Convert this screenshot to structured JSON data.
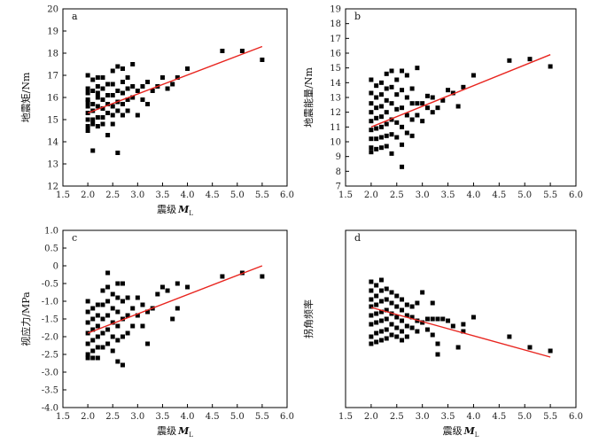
{
  "chart_data": [
    {
      "type": "scatter",
      "panel": "a",
      "xlabel": "震级",
      "xlabel_symbol": "M",
      "xlabel_sub": "L",
      "ylabel": "地震矩/Nm",
      "xlim": [
        1.5,
        6.0
      ],
      "ylim": [
        12,
        20
      ],
      "xticks": [
        "1.5",
        "2.0",
        "2.5",
        "3.0",
        "3.5",
        "4.0",
        "4.5",
        "5.0",
        "5.5",
        "6.0"
      ],
      "yticks": [
        "12",
        "13",
        "14",
        "15",
        "16",
        "17",
        "18",
        "19",
        "20"
      ],
      "fit_line": {
        "x": [
          2.0,
          5.5
        ],
        "y": [
          15.3,
          18.3
        ],
        "color": "#e8251f"
      },
      "points": [
        [
          2.0,
          17.0
        ],
        [
          2.0,
          16.4
        ],
        [
          2.0,
          15.9
        ],
        [
          2.0,
          15.6
        ],
        [
          2.0,
          15.3
        ],
        [
          2.0,
          15.0
        ],
        [
          2.0,
          14.7
        ],
        [
          2.0,
          14.5
        ],
        [
          2.0,
          16.2
        ],
        [
          2.0,
          15.8
        ],
        [
          2.1,
          16.8
        ],
        [
          2.1,
          16.3
        ],
        [
          2.1,
          15.7
        ],
        [
          2.1,
          15.4
        ],
        [
          2.1,
          15.0
        ],
        [
          2.1,
          14.8
        ],
        [
          2.1,
          13.6
        ],
        [
          2.2,
          16.9
        ],
        [
          2.2,
          16.5
        ],
        [
          2.2,
          16.0
        ],
        [
          2.2,
          15.6
        ],
        [
          2.2,
          15.1
        ],
        [
          2.2,
          14.7
        ],
        [
          2.2,
          16.2
        ],
        [
          2.3,
          16.9
        ],
        [
          2.3,
          16.4
        ],
        [
          2.3,
          15.9
        ],
        [
          2.3,
          15.5
        ],
        [
          2.3,
          15.1
        ],
        [
          2.3,
          14.8
        ],
        [
          2.4,
          14.3
        ],
        [
          2.4,
          16.6
        ],
        [
          2.4,
          16.1
        ],
        [
          2.4,
          15.7
        ],
        [
          2.4,
          15.3
        ],
        [
          2.5,
          17.2
        ],
        [
          2.5,
          16.6
        ],
        [
          2.5,
          16.1
        ],
        [
          2.5,
          15.6
        ],
        [
          2.5,
          15.2
        ],
        [
          2.5,
          14.8
        ],
        [
          2.6,
          17.4
        ],
        [
          2.6,
          16.3
        ],
        [
          2.6,
          15.8
        ],
        [
          2.6,
          15.4
        ],
        [
          2.6,
          13.5
        ],
        [
          2.7,
          17.3
        ],
        [
          2.7,
          16.7
        ],
        [
          2.7,
          16.2
        ],
        [
          2.7,
          15.7
        ],
        [
          2.7,
          15.2
        ],
        [
          2.8,
          16.9
        ],
        [
          2.8,
          16.4
        ],
        [
          2.8,
          15.9
        ],
        [
          2.8,
          15.4
        ],
        [
          2.9,
          17.5
        ],
        [
          2.9,
          16.5
        ],
        [
          2.9,
          16.0
        ],
        [
          3.0,
          15.2
        ],
        [
          3.0,
          16.3
        ],
        [
          3.1,
          16.5
        ],
        [
          3.1,
          15.9
        ],
        [
          3.2,
          16.7
        ],
        [
          3.2,
          15.7
        ],
        [
          3.3,
          16.3
        ],
        [
          3.4,
          16.5
        ],
        [
          3.5,
          16.9
        ],
        [
          3.6,
          16.4
        ],
        [
          3.7,
          16.6
        ],
        [
          3.8,
          16.9
        ],
        [
          4.0,
          17.3
        ],
        [
          4.7,
          18.1
        ],
        [
          5.1,
          18.1
        ],
        [
          5.5,
          17.7
        ]
      ]
    },
    {
      "type": "scatter",
      "panel": "b",
      "xlabel": "",
      "ylabel": "地震能量/Nm",
      "xlim": [
        1.5,
        6.0
      ],
      "ylim": [
        7,
        19
      ],
      "xticks": [
        "1.5",
        "2.0",
        "2.5",
        "3.0",
        "3.5",
        "4.0",
        "4.5",
        "5.0",
        "5.5",
        "6.0"
      ],
      "yticks": [
        "7",
        "8",
        "9",
        "10",
        "11",
        "12",
        "13",
        "14",
        "15",
        "16",
        "17",
        "18",
        "19"
      ],
      "fit_line": {
        "x": [
          2.0,
          5.5
        ],
        "y": [
          11.0,
          15.9
        ],
        "color": "#e8251f"
      },
      "points": [
        [
          2.0,
          14.2
        ],
        [
          2.0,
          13.3
        ],
        [
          2.0,
          12.6
        ],
        [
          2.0,
          12.0
        ],
        [
          2.0,
          11.4
        ],
        [
          2.0,
          10.8
        ],
        [
          2.0,
          10.2
        ],
        [
          2.0,
          9.6
        ],
        [
          2.0,
          9.3
        ],
        [
          2.1,
          13.8
        ],
        [
          2.1,
          13.0
        ],
        [
          2.1,
          12.3
        ],
        [
          2.1,
          11.6
        ],
        [
          2.1,
          10.9
        ],
        [
          2.1,
          10.2
        ],
        [
          2.1,
          9.5
        ],
        [
          2.2,
          14.0
        ],
        [
          2.2,
          13.2
        ],
        [
          2.2,
          12.4
        ],
        [
          2.2,
          11.7
        ],
        [
          2.2,
          11.0
        ],
        [
          2.2,
          10.3
        ],
        [
          2.2,
          9.6
        ],
        [
          2.3,
          14.6
        ],
        [
          2.3,
          13.6
        ],
        [
          2.3,
          12.8
        ],
        [
          2.3,
          12.0
        ],
        [
          2.3,
          11.2
        ],
        [
          2.3,
          10.4
        ],
        [
          2.3,
          9.7
        ],
        [
          2.4,
          14.8
        ],
        [
          2.4,
          13.7
        ],
        [
          2.4,
          12.6
        ],
        [
          2.4,
          11.5
        ],
        [
          2.4,
          10.5
        ],
        [
          2.4,
          9.2
        ],
        [
          2.5,
          14.2
        ],
        [
          2.5,
          13.2
        ],
        [
          2.5,
          12.2
        ],
        [
          2.5,
          11.3
        ],
        [
          2.5,
          10.3
        ],
        [
          2.6,
          14.8
        ],
        [
          2.6,
          13.5
        ],
        [
          2.6,
          12.3
        ],
        [
          2.6,
          11.0
        ],
        [
          2.6,
          8.3
        ],
        [
          2.6,
          9.8
        ],
        [
          2.7,
          14.5
        ],
        [
          2.7,
          13.0
        ],
        [
          2.7,
          11.8
        ],
        [
          2.7,
          10.6
        ],
        [
          2.8,
          13.6
        ],
        [
          2.8,
          12.6
        ],
        [
          2.8,
          11.5
        ],
        [
          2.8,
          10.4
        ],
        [
          2.9,
          15.0
        ],
        [
          2.9,
          12.6
        ],
        [
          2.9,
          11.8
        ],
        [
          3.0,
          11.4
        ],
        [
          3.0,
          12.6
        ],
        [
          3.1,
          13.1
        ],
        [
          3.1,
          12.3
        ],
        [
          3.2,
          13.0
        ],
        [
          3.2,
          12.0
        ],
        [
          3.3,
          12.3
        ],
        [
          3.4,
          12.8
        ],
        [
          3.5,
          13.5
        ],
        [
          3.6,
          13.3
        ],
        [
          3.7,
          12.4
        ],
        [
          3.8,
          13.7
        ],
        [
          4.0,
          14.5
        ],
        [
          4.7,
          15.5
        ],
        [
          5.1,
          15.6
        ],
        [
          5.5,
          15.1
        ]
      ]
    },
    {
      "type": "scatter",
      "panel": "c",
      "xlabel": "震级",
      "xlabel_symbol": "M",
      "xlabel_sub": "L",
      "ylabel": "视应力/MPa",
      "xlim": [
        1.5,
        6.0
      ],
      "ylim": [
        -4.0,
        1.0
      ],
      "xticks": [
        "1.5",
        "2.0",
        "2.5",
        "3.0",
        "3.5",
        "4.0",
        "4.5",
        "5.0",
        "5.5",
        "6.0"
      ],
      "yticks": [
        "-4.0",
        "-3.5",
        "-3.0",
        "-2.5",
        "-2.0",
        "-1.5",
        "-1.0",
        "-0.5",
        "0",
        "0.5",
        "1.0"
      ],
      "fit_line": {
        "x": [
          2.0,
          5.5
        ],
        "y": [
          -1.9,
          0.0
        ],
        "color": "#e8251f"
      },
      "points": [
        [
          2.0,
          -1.0
        ],
        [
          2.0,
          -1.3
        ],
        [
          2.0,
          -1.6
        ],
        [
          2.0,
          -1.9
        ],
        [
          2.0,
          -2.2
        ],
        [
          2.0,
          -2.5
        ],
        [
          2.0,
          -2.6
        ],
        [
          2.1,
          -1.2
        ],
        [
          2.1,
          -1.5
        ],
        [
          2.1,
          -1.8
        ],
        [
          2.1,
          -2.1
        ],
        [
          2.1,
          -2.4
        ],
        [
          2.1,
          -2.6
        ],
        [
          2.2,
          -1.1
        ],
        [
          2.2,
          -1.4
        ],
        [
          2.2,
          -1.7
        ],
        [
          2.2,
          -2.0
        ],
        [
          2.2,
          -2.3
        ],
        [
          2.2,
          -2.6
        ],
        [
          2.3,
          -0.7
        ],
        [
          2.3,
          -1.1
        ],
        [
          2.3,
          -1.5
        ],
        [
          2.3,
          -1.9
        ],
        [
          2.3,
          -2.3
        ],
        [
          2.4,
          -0.2
        ],
        [
          2.4,
          -0.6
        ],
        [
          2.4,
          -1.0
        ],
        [
          2.4,
          -1.4
        ],
        [
          2.4,
          -1.8
        ],
        [
          2.4,
          -2.2
        ],
        [
          2.5,
          -0.8
        ],
        [
          2.5,
          -1.2
        ],
        [
          2.5,
          -1.6
        ],
        [
          2.5,
          -2.0
        ],
        [
          2.5,
          -2.4
        ],
        [
          2.6,
          -0.5
        ],
        [
          2.6,
          -0.9
        ],
        [
          2.6,
          -1.3
        ],
        [
          2.6,
          -1.7
        ],
        [
          2.6,
          -2.1
        ],
        [
          2.6,
          -2.7
        ],
        [
          2.7,
          -0.5
        ],
        [
          2.7,
          -1.0
        ],
        [
          2.7,
          -1.5
        ],
        [
          2.7,
          -2.0
        ],
        [
          2.7,
          -2.8
        ],
        [
          2.8,
          -0.9
        ],
        [
          2.8,
          -1.4
        ],
        [
          2.8,
          -1.9
        ],
        [
          2.9,
          -1.2
        ],
        [
          2.9,
          -1.7
        ],
        [
          3.0,
          -0.9
        ],
        [
          3.0,
          -1.4
        ],
        [
          3.1,
          -1.1
        ],
        [
          3.1,
          -1.7
        ],
        [
          3.2,
          -1.3
        ],
        [
          3.2,
          -2.2
        ],
        [
          3.3,
          -1.2
        ],
        [
          3.4,
          -0.8
        ],
        [
          3.5,
          -0.6
        ],
        [
          3.6,
          -0.7
        ],
        [
          3.7,
          -1.5
        ],
        [
          3.8,
          -1.2
        ],
        [
          3.8,
          -0.5
        ],
        [
          4.0,
          -0.6
        ],
        [
          4.7,
          -0.3
        ],
        [
          5.1,
          -0.2
        ],
        [
          5.5,
          -0.3
        ]
      ]
    },
    {
      "type": "scatter",
      "panel": "d",
      "xlabel": "震级",
      "xlabel_symbol": "M",
      "xlabel_sub": "L",
      "ylabel": "拐角频率",
      "xlim": [
        1.5,
        6.0
      ],
      "ylim": [
        0,
        1.0
      ],
      "xticks": [
        "1.5",
        "2.0",
        "2.5",
        "3.0",
        "3.5",
        "4.0",
        "4.5",
        "5.0",
        "5.5",
        "6.0"
      ],
      "yticks": [],
      "fit_line": {
        "x": [
          2.0,
          5.5
        ],
        "y": [
          0.565,
          0.285
        ],
        "color": "#e8251f"
      },
      "points": [
        [
          2.0,
          0.71
        ],
        [
          2.0,
          0.66
        ],
        [
          2.0,
          0.61
        ],
        [
          2.0,
          0.57
        ],
        [
          2.0,
          0.52
        ],
        [
          2.0,
          0.47
        ],
        [
          2.0,
          0.4
        ],
        [
          2.0,
          0.36
        ],
        [
          2.1,
          0.69
        ],
        [
          2.1,
          0.63
        ],
        [
          2.1,
          0.58
        ],
        [
          2.1,
          0.53
        ],
        [
          2.1,
          0.48
        ],
        [
          2.1,
          0.42
        ],
        [
          2.1,
          0.37
        ],
        [
          2.2,
          0.72
        ],
        [
          2.2,
          0.66
        ],
        [
          2.2,
          0.6
        ],
        [
          2.2,
          0.54
        ],
        [
          2.2,
          0.49
        ],
        [
          2.2,
          0.43
        ],
        [
          2.2,
          0.38
        ],
        [
          2.3,
          0.67
        ],
        [
          2.3,
          0.61
        ],
        [
          2.3,
          0.55
        ],
        [
          2.3,
          0.5
        ],
        [
          2.3,
          0.44
        ],
        [
          2.3,
          0.39
        ],
        [
          2.4,
          0.65
        ],
        [
          2.4,
          0.59
        ],
        [
          2.4,
          0.53
        ],
        [
          2.4,
          0.47
        ],
        [
          2.4,
          0.41
        ],
        [
          2.5,
          0.63
        ],
        [
          2.5,
          0.57
        ],
        [
          2.5,
          0.51
        ],
        [
          2.5,
          0.45
        ],
        [
          2.5,
          0.4
        ],
        [
          2.6,
          0.61
        ],
        [
          2.6,
          0.55
        ],
        [
          2.6,
          0.49
        ],
        [
          2.6,
          0.43
        ],
        [
          2.6,
          0.38
        ],
        [
          2.7,
          0.58
        ],
        [
          2.7,
          0.52
        ],
        [
          2.7,
          0.46
        ],
        [
          2.7,
          0.4
        ],
        [
          2.8,
          0.57
        ],
        [
          2.8,
          0.51
        ],
        [
          2.8,
          0.45
        ],
        [
          2.9,
          0.59
        ],
        [
          2.9,
          0.49
        ],
        [
          2.9,
          0.43
        ],
        [
          3.0,
          0.65
        ],
        [
          3.0,
          0.48
        ],
        [
          3.1,
          0.5
        ],
        [
          3.1,
          0.44
        ],
        [
          3.2,
          0.59
        ],
        [
          3.2,
          0.5
        ],
        [
          3.2,
          0.41
        ],
        [
          3.3,
          0.5
        ],
        [
          3.3,
          0.36
        ],
        [
          3.3,
          0.3
        ],
        [
          3.4,
          0.5
        ],
        [
          3.5,
          0.49
        ],
        [
          3.6,
          0.46
        ],
        [
          3.7,
          0.34
        ],
        [
          3.8,
          0.47
        ],
        [
          3.8,
          0.43
        ],
        [
          4.0,
          0.51
        ],
        [
          4.7,
          0.4
        ],
        [
          5.1,
          0.34
        ],
        [
          5.5,
          0.32
        ]
      ]
    }
  ]
}
